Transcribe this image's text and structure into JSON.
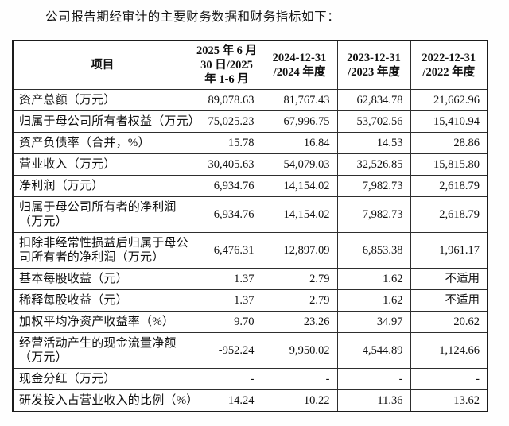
{
  "title": "公司报告期经审计的主要财务数据和财务指标如下：",
  "table": {
    "headers": [
      "项目",
      "2025 年 6 月\n30 日/2025\n年 1-6 月",
      "2024-12-31\n/2024 年度",
      "2023-12-31\n/2023 年度",
      "2022-12-31\n/2022 年度"
    ],
    "rows": [
      {
        "label": "资产总额（万元）",
        "values": [
          "89,078.63",
          "81,767.43",
          "62,834.78",
          "21,662.96"
        ]
      },
      {
        "label": "归属于母公司所有者权益（万元）",
        "values": [
          "75,025.23",
          "67,996.75",
          "53,702.56",
          "15,410.94"
        ]
      },
      {
        "label": "资产负债率（合并，%）",
        "values": [
          "15.78",
          "16.84",
          "14.53",
          "28.86"
        ]
      },
      {
        "label": "营业收入（万元）",
        "values": [
          "30,405.63",
          "54,079.03",
          "32,526.85",
          "15,815.80"
        ]
      },
      {
        "label": "净利润（万元）",
        "values": [
          "6,934.76",
          "14,154.02",
          "7,982.73",
          "2,618.79"
        ]
      },
      {
        "label": "归属于母公司所有者的净利润\n（万元）",
        "values": [
          "6,934.76",
          "14,154.02",
          "7,982.73",
          "2,618.79"
        ]
      },
      {
        "label": "扣除非经常性损益后归属于母公\n司所有者的净利润（万元）",
        "values": [
          "6,476.31",
          "12,897.09",
          "6,853.38",
          "1,961.17"
        ]
      },
      {
        "label": "基本每股收益（元）",
        "values": [
          "1.37",
          "2.79",
          "1.62",
          "不适用"
        ]
      },
      {
        "label": "稀释每股收益（元）",
        "values": [
          "1.37",
          "2.79",
          "1.62",
          "不适用"
        ]
      },
      {
        "label": "加权平均净资产收益率（%）",
        "values": [
          "9.70",
          "23.26",
          "34.97",
          "20.62"
        ]
      },
      {
        "label": "经营活动产生的现金流量净额\n（万元）",
        "values": [
          "-952.24",
          "9,950.02",
          "4,544.89",
          "1,124.66"
        ]
      },
      {
        "label": "现金分红（万元）",
        "values": [
          "-",
          "-",
          "-",
          "-"
        ]
      },
      {
        "label": "研发投入占营业收入的比例（%）",
        "values": [
          "14.24",
          "10.22",
          "11.36",
          "13.62"
        ]
      }
    ]
  }
}
